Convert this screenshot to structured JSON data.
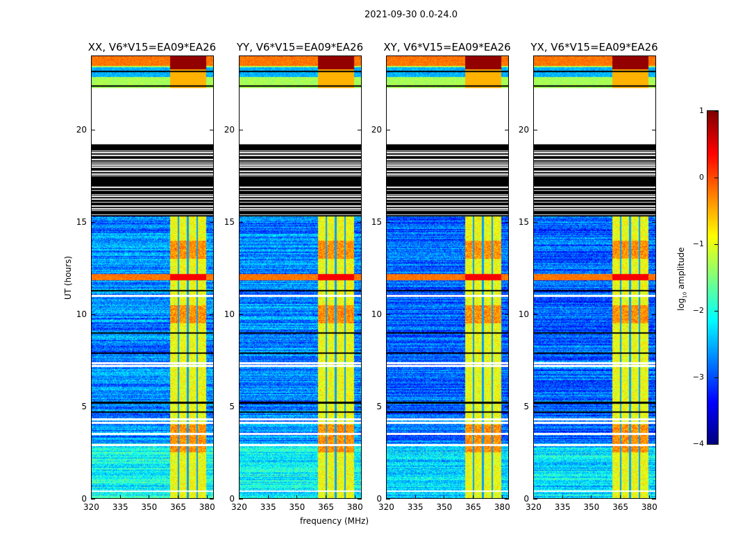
{
  "chart_data": {
    "type": "heatmap",
    "title": "2021-09-30 0.0-24.0",
    "xlabel": "frequency (MHz)",
    "ylabel": "UT (hours)",
    "xlim": [
      320,
      384
    ],
    "ylim": [
      0,
      24
    ],
    "xticks": [
      "320",
      "335",
      "350",
      "365",
      "380"
    ],
    "yticks": [
      "0",
      "5",
      "10",
      "15",
      "20"
    ],
    "panels": [
      {
        "title": "XX, V6*V15=EA09*EA26"
      },
      {
        "title": "YY, V6*V15=EA09*EA26"
      },
      {
        "title": "XY, V6*V15=EA09*EA26"
      },
      {
        "title": "YX, V6*V15=EA09*EA26"
      }
    ],
    "colorbar": {
      "label_prefix": "log",
      "label_sub": "10",
      "label_suffix": " amplitude",
      "range": [
        -4,
        1
      ],
      "ticks": [
        "−4",
        "−3",
        "−2",
        "−1",
        "0",
        "1"
      ],
      "colormap": "jet"
    },
    "features": {
      "no_data_hours": [
        19.3,
        22.3
      ],
      "striped_flag_hours": [
        15.3,
        19.3
      ],
      "rfi_band_mhz": [
        361,
        380
      ],
      "rfi_gaps_mhz": [
        365.5,
        370.5,
        375.5
      ],
      "bright_band_hours": [
        11.85,
        12.2
      ]
    }
  }
}
